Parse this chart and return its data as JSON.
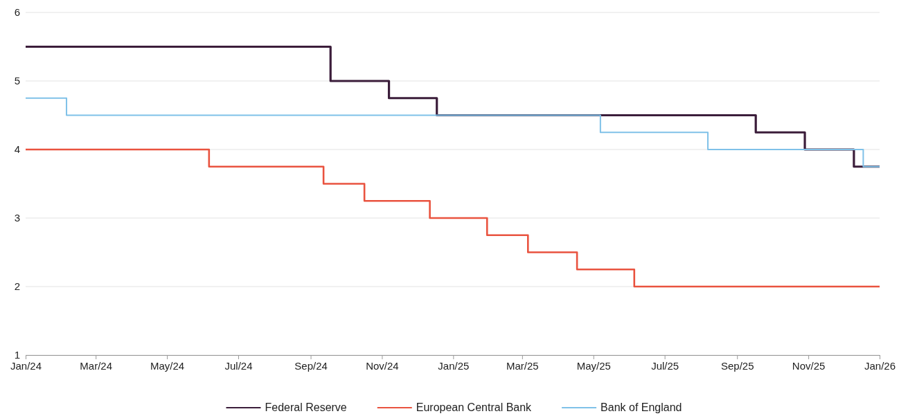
{
  "chart_data": {
    "type": "step",
    "xlim": [
      "2024-01-01",
      "2026-01-01"
    ],
    "ylim": [
      1,
      6
    ],
    "yticks": [
      1,
      2,
      3,
      4,
      5,
      6
    ],
    "xticks": [
      {
        "value": "2024-01-01",
        "label": "Jan/24"
      },
      {
        "value": "2024-03-01",
        "label": "Mar/24"
      },
      {
        "value": "2024-05-01",
        "label": "May/24"
      },
      {
        "value": "2024-07-01",
        "label": "Jul/24"
      },
      {
        "value": "2024-09-01",
        "label": "Sep/24"
      },
      {
        "value": "2024-11-01",
        "label": "Nov/24"
      },
      {
        "value": "2025-01-01",
        "label": "Jan/25"
      },
      {
        "value": "2025-03-01",
        "label": "Mar/25"
      },
      {
        "value": "2025-05-01",
        "label": "May/25"
      },
      {
        "value": "2025-07-01",
        "label": "Jul/25"
      },
      {
        "value": "2025-09-01",
        "label": "Sep/25"
      },
      {
        "value": "2025-11-01",
        "label": "Nov/25"
      },
      {
        "value": "2026-01-01",
        "label": "Jan/26"
      }
    ],
    "grid": "y",
    "legend": "bottom",
    "line_style": "solid",
    "marker": "none",
    "series": [
      {
        "name": "Federal Reserve",
        "color": "#3b1d3a",
        "x": [
          "2024-01-01",
          "2024-09-18",
          "2024-11-07",
          "2024-12-18",
          "2025-09-17",
          "2025-10-29",
          "2025-12-10",
          "2026-01-01"
        ],
        "values": [
          5.5,
          5.0,
          4.75,
          4.5,
          4.25,
          4.0,
          3.75,
          3.75
        ]
      },
      {
        "name": "European Central Bank",
        "color": "#e9533f",
        "x": [
          "2024-01-01",
          "2024-06-06",
          "2024-09-12",
          "2024-10-17",
          "2024-12-12",
          "2025-01-30",
          "2025-03-06",
          "2025-04-17",
          "2025-06-05",
          "2026-01-01"
        ],
        "values": [
          4.0,
          3.75,
          3.5,
          3.25,
          3.0,
          2.75,
          2.5,
          2.25,
          2.0,
          2.0
        ]
      },
      {
        "name": "Bank of England",
        "color": "#7fc1e8",
        "x": [
          "2024-01-01",
          "2024-02-05",
          "2025-05-07",
          "2025-08-07",
          "2025-12-18",
          "2026-01-01"
        ],
        "values": [
          4.75,
          4.5,
          4.25,
          4.0,
          3.75,
          3.75
        ]
      }
    ]
  }
}
